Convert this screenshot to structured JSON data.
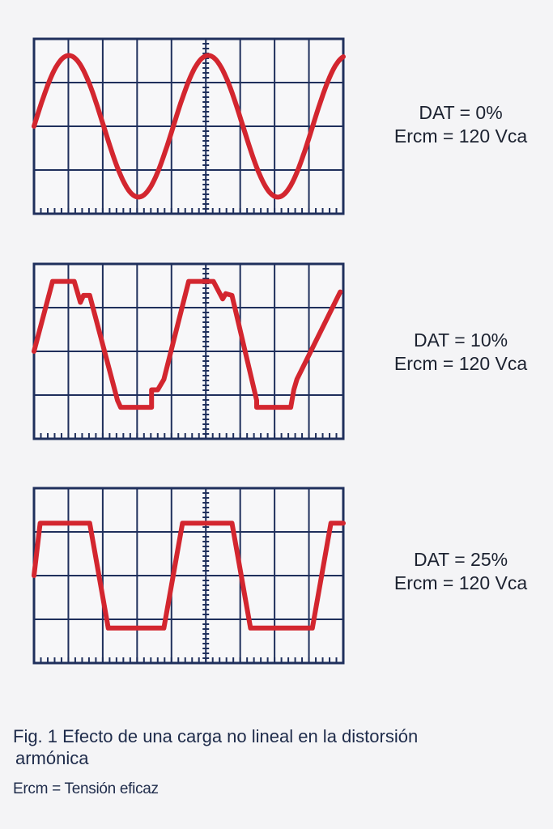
{
  "panels": [
    {
      "id": "dat-0",
      "dat_label": "DAT = 0%",
      "ercm_label": "Ercm = 120 Vca",
      "waveform": "sine"
    },
    {
      "id": "dat-10",
      "dat_label": "DAT = 10%",
      "ercm_label": "Ercm = 120 Vca",
      "waveform": "distorted"
    },
    {
      "id": "dat-25",
      "dat_label": "DAT = 25%",
      "ercm_label": "Ercm = 120 Vca",
      "waveform": "trapezoid"
    }
  ],
  "caption": {
    "line1": "Fig. 1 Efecto de una carga no lineal en la distorsión",
    "line2": "armónica"
  },
  "note": "Ercm = Tensión eficaz",
  "colors": {
    "grid": "#1f2f5c",
    "wave": "#d3262f",
    "grid_background": "#f7f7f9"
  }
}
